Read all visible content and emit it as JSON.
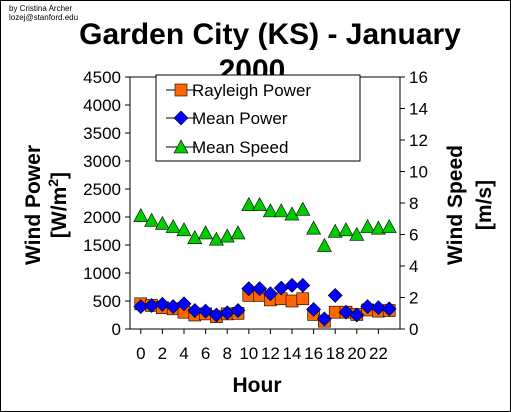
{
  "credit": {
    "line1": "by Cristina Archer",
    "line2": "lozej@stanford.edu"
  },
  "chart_data": {
    "type": "scatter",
    "title_line1": "Garden City (KS) - January",
    "title_line2": "2000",
    "xlabel": "Hour",
    "ylabel_left": "Wind Power",
    "ylabel_left_unit": "[W/m",
    "ylabel_left_unit_sup": "2",
    "ylabel_left_unit_end": "]",
    "ylabel_right_line1": "Wind Speed",
    "ylabel_right_line2": "[m/s]",
    "xlim": [
      -1,
      24
    ],
    "ylim_left": [
      0,
      4500
    ],
    "ylim_right": [
      0,
      16
    ],
    "x_ticks": [
      "0",
      "2",
      "4",
      "6",
      "8",
      "10",
      "12",
      "14",
      "16",
      "18",
      "20",
      "22"
    ],
    "x_tick_values": [
      0,
      2,
      4,
      6,
      8,
      10,
      12,
      14,
      16,
      18,
      20,
      22
    ],
    "y_left_ticks": [
      "0",
      "500",
      "1000",
      "1500",
      "2000",
      "2500",
      "3000",
      "3500",
      "4000",
      "4500"
    ],
    "y_left_tick_values": [
      0,
      500,
      1000,
      1500,
      2000,
      2500,
      3000,
      3500,
      4000,
      4500
    ],
    "y_right_ticks": [
      "0",
      "2",
      "4",
      "6",
      "8",
      "10",
      "12",
      "14",
      "16"
    ],
    "y_right_tick_values": [
      0,
      2,
      4,
      6,
      8,
      10,
      12,
      14,
      16
    ],
    "grid": false,
    "legend_position": "top-center",
    "hours": [
      0,
      1,
      2,
      3,
      4,
      5,
      6,
      7,
      8,
      9,
      10,
      11,
      12,
      13,
      14,
      15,
      16,
      17,
      18,
      19,
      20,
      21,
      22,
      23
    ],
    "series": [
      {
        "name": "Rayleigh Power",
        "axis": "left",
        "marker": "square",
        "color": "#ff6600",
        "values": [
          450,
          420,
          380,
          360,
          300,
          250,
          270,
          220,
          270,
          280,
          600,
          600,
          520,
          540,
          500,
          540,
          260,
          140,
          300,
          300,
          260,
          340,
          320,
          330
        ]
      },
      {
        "name": "Mean Power",
        "axis": "left",
        "marker": "diamond",
        "color": "#0000ff",
        "values": [
          400,
          420,
          440,
          400,
          450,
          330,
          320,
          250,
          290,
          330,
          720,
          720,
          630,
          730,
          780,
          780,
          350,
          180,
          600,
          300,
          250,
          400,
          380,
          360
        ]
      },
      {
        "name": "Mean Speed",
        "axis": "right",
        "marker": "triangle",
        "color": "#00cc00",
        "values": [
          7.2,
          6.9,
          6.7,
          6.5,
          6.3,
          5.8,
          6.1,
          5.7,
          5.9,
          6.1,
          7.9,
          7.9,
          7.5,
          7.5,
          7.3,
          7.6,
          6.4,
          5.3,
          6.2,
          6.3,
          6.0,
          6.5,
          6.4,
          6.5
        ]
      }
    ]
  }
}
